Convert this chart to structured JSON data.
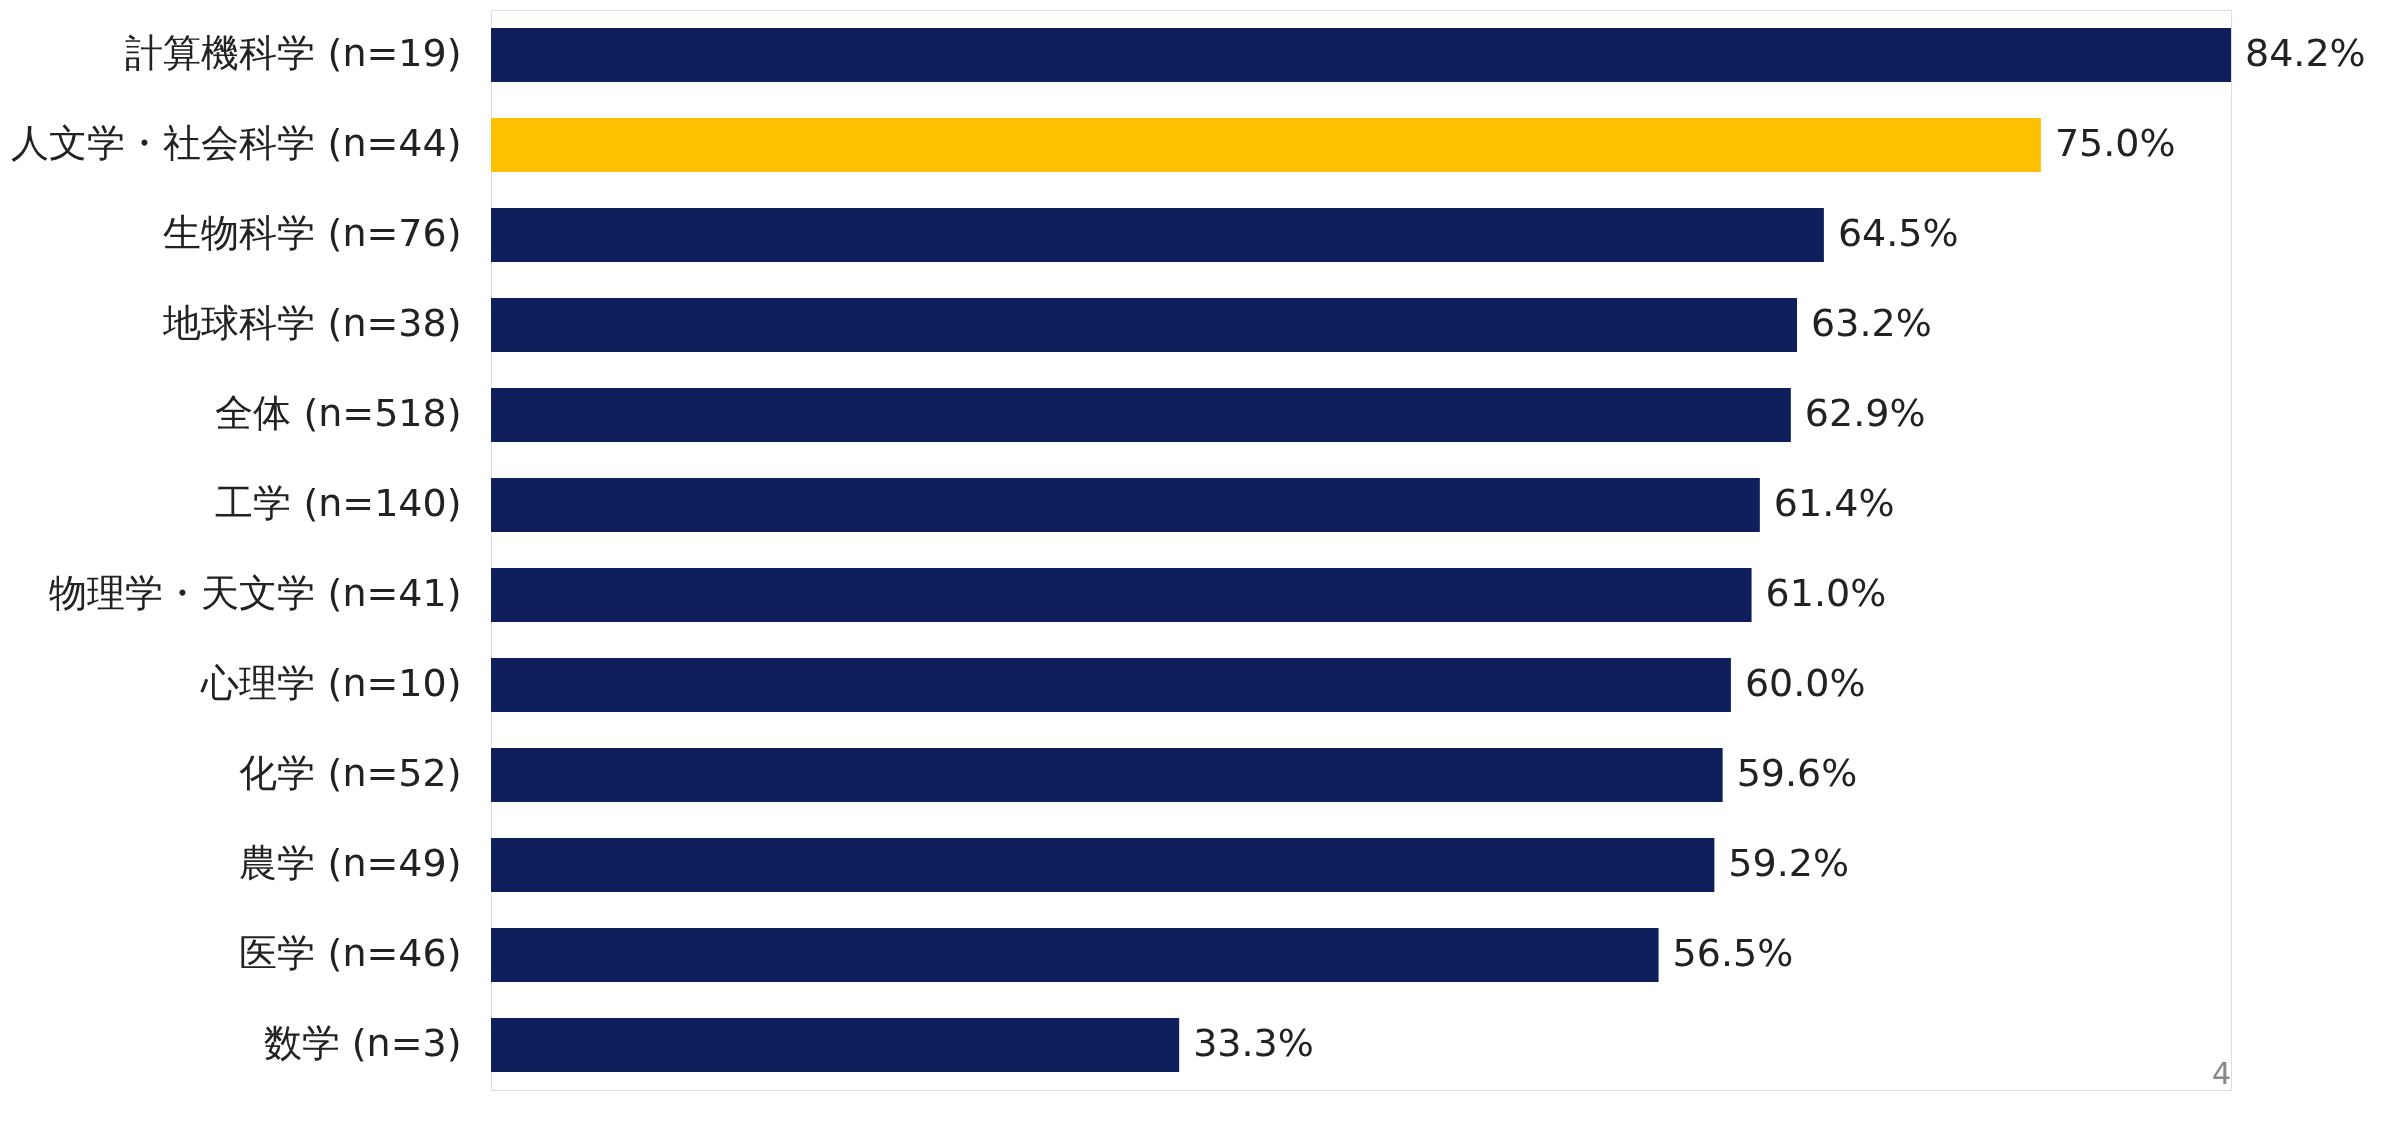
{
  "chart_data": {
    "type": "bar",
    "orientation": "horizontal",
    "categories": [
      "計算機科学 (n=19)",
      "人文学・社会科学 (n=44)",
      "生物科学 (n=76)",
      "地球科学 (n=38)",
      "全体 (n=518)",
      "工学 (n=140)",
      "物理学・天文学 (n=41)",
      "心理学 (n=10)",
      "化学 (n=52)",
      "農学 (n=49)",
      "医学 (n=46)",
      "数学 (n=3)"
    ],
    "values": [
      84.2,
      75.0,
      64.5,
      63.2,
      62.9,
      61.4,
      61.0,
      60.0,
      59.6,
      59.2,
      56.5,
      33.3
    ],
    "colors": [
      "#0f1f5c",
      "#ffc000",
      "#0f1f5c",
      "#0f1f5c",
      "#0f1f5c",
      "#0f1f5c",
      "#0f1f5c",
      "#0f1f5c",
      "#0f1f5c",
      "#0f1f5c",
      "#0f1f5c",
      "#0f1f5c"
    ],
    "value_labels": [
      "84.2%",
      "75.0%",
      "64.5%",
      "63.2%",
      "62.9%",
      "61.4%",
      "61.0%",
      "60.0%",
      "59.6%",
      "59.2%",
      "56.5%",
      "33.3%"
    ],
    "annotations": [
      "4"
    ],
    "grid": false
  }
}
